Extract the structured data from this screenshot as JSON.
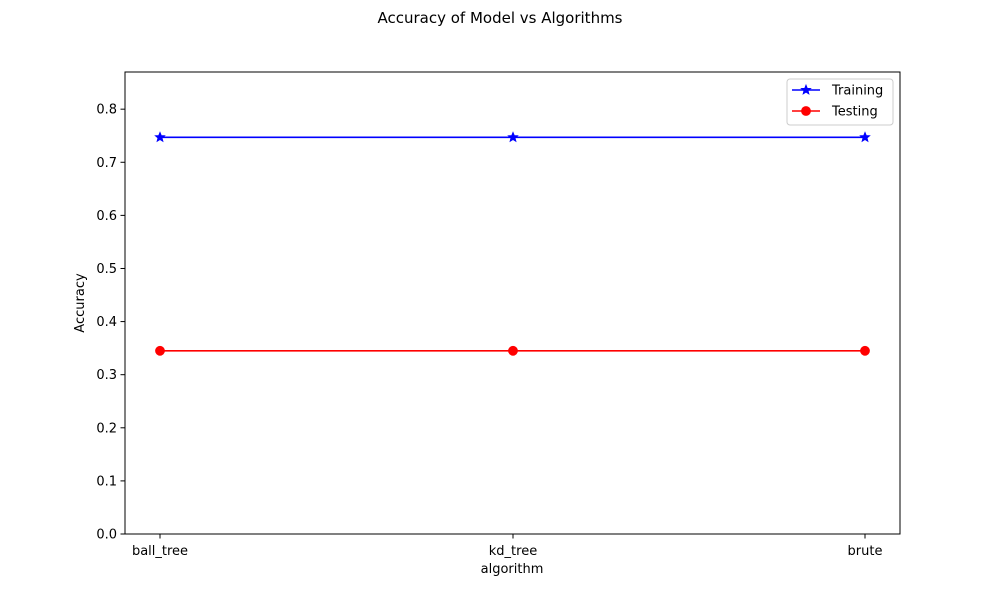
{
  "chart_data": {
    "type": "line",
    "title": "Accuracy of Model vs Algorithms",
    "xlabel": "algorithm",
    "ylabel": "Accuracy",
    "categories": [
      "ball_tree",
      "kd_tree",
      "brute"
    ],
    "ylim": [
      0,
      0.87
    ],
    "yticks": [
      0.0,
      0.1,
      0.2,
      0.3,
      0.4,
      0.5,
      0.6,
      0.7,
      0.8
    ],
    "ytick_labels": [
      "0.0",
      "0.1",
      "0.2",
      "0.3",
      "0.4",
      "0.5",
      "0.6",
      "0.7",
      "0.8"
    ],
    "grid": false,
    "legend_position": "top-right",
    "series": [
      {
        "name": "Training",
        "values": [
          0.747,
          0.747,
          0.747
        ],
        "color": "#0000ff",
        "marker": "star"
      },
      {
        "name": "Testing",
        "values": [
          0.345,
          0.345,
          0.345
        ],
        "color": "#ff0000",
        "marker": "circle"
      }
    ]
  }
}
